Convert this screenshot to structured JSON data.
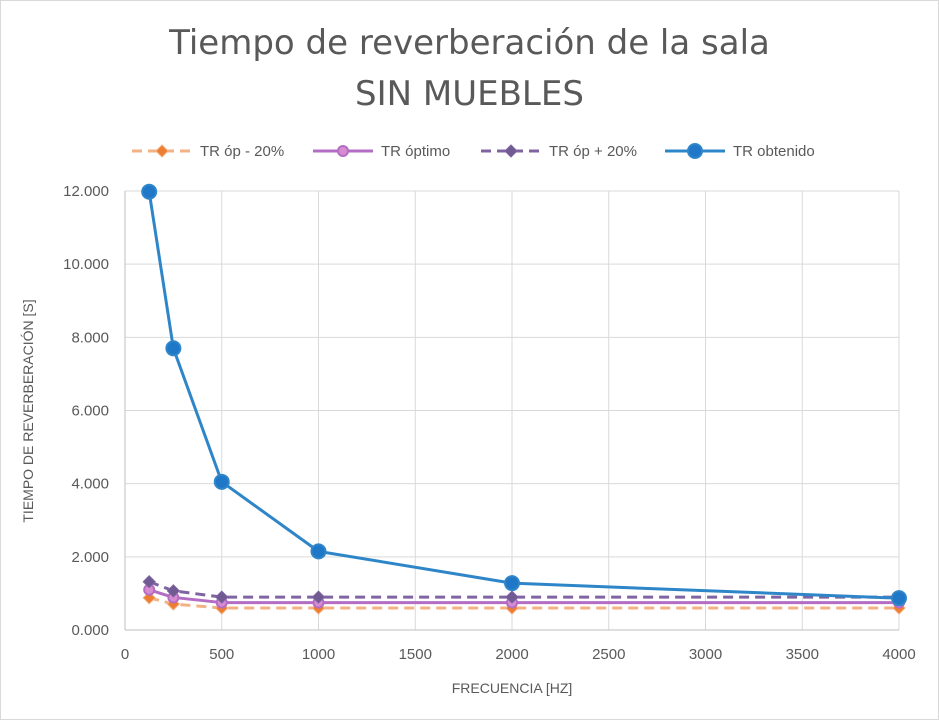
{
  "chart_data": {
    "type": "line",
    "title": "Tiempo de reverberación de la sala",
    "subtitle": "SIN MUEBLES",
    "xlabel": "FRECUENCIA [HZ]",
    "ylabel": "TIEMPO DE REVERBERACIÓN [S]",
    "xlim": [
      0,
      4000
    ],
    "ylim": [
      0,
      12
    ],
    "x_ticks": [
      0,
      500,
      1000,
      1500,
      2000,
      2500,
      3000,
      3500,
      4000
    ],
    "x_tick_labels": [
      "0",
      "500",
      "1000",
      "1500",
      "2000",
      "2500",
      "3000",
      "3500",
      "4000"
    ],
    "y_ticks": [
      0,
      2,
      4,
      6,
      8,
      10,
      12
    ],
    "y_tick_labels": [
      "0.000",
      "2.000",
      "4.000",
      "6.000",
      "8.000",
      "10.000",
      "12.000"
    ],
    "grid": true,
    "legend_position": "top",
    "x": [
      125,
      250,
      500,
      1000,
      2000,
      4000
    ],
    "series": [
      {
        "name": "TR óp - 20%",
        "values": [
          0.88,
          0.71,
          0.6,
          0.6,
          0.6,
          0.6
        ],
        "color": "#f4b183",
        "marker_color": "#ed7d31",
        "line_style": "dashed",
        "marker": "diamond"
      },
      {
        "name": "TR óptimo",
        "values": [
          1.1,
          0.89,
          0.75,
          0.75,
          0.75,
          0.75
        ],
        "color": "#b46dc4",
        "marker_color": "#d88cd0",
        "line_style": "solid",
        "marker": "circle"
      },
      {
        "name": "TR óp + 20%",
        "values": [
          1.32,
          1.07,
          0.9,
          0.9,
          0.9,
          0.9
        ],
        "color": "#8064a2",
        "marker_color": "#6f5a92",
        "line_style": "dashed",
        "marker": "diamond"
      },
      {
        "name": "TR obtenido",
        "values": [
          11.98,
          7.7,
          4.05,
          2.15,
          1.28,
          0.87
        ],
        "color": "#2e86c9",
        "marker_color": "#1f77c8",
        "line_style": "solid",
        "marker": "circle"
      }
    ]
  }
}
